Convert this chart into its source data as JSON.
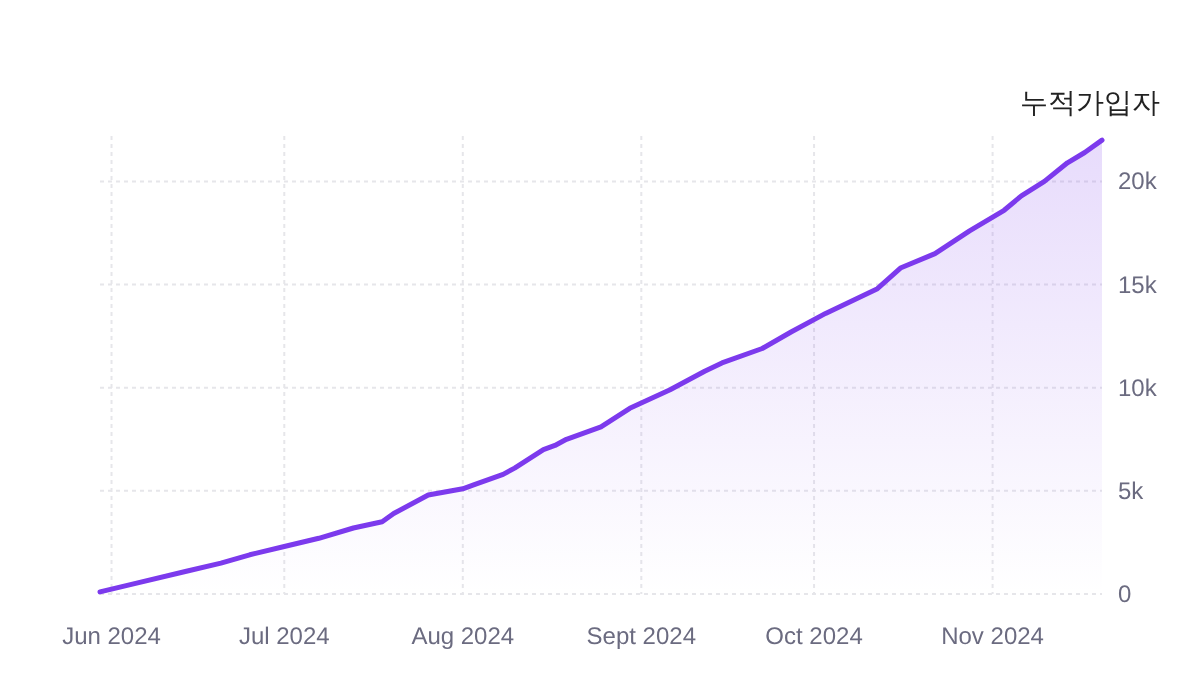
{
  "chart_data": {
    "type": "area",
    "ylabel": "누적가입자",
    "x": [
      "2024-05-30",
      "2024-06-05",
      "2024-06-14",
      "2024-06-20",
      "2024-06-25",
      "2024-07-01",
      "2024-07-07",
      "2024-07-13",
      "2024-07-18",
      "2024-07-20",
      "2024-07-26",
      "2024-08-01",
      "2024-08-03",
      "2024-08-08",
      "2024-08-10",
      "2024-08-15",
      "2024-08-17",
      "2024-08-19",
      "2024-08-25",
      "2024-08-30",
      "2024-09-06",
      "2024-09-12",
      "2024-09-15",
      "2024-09-22",
      "2024-09-27",
      "2024-10-03",
      "2024-10-12",
      "2024-10-16",
      "2024-10-22",
      "2024-10-28",
      "2024-11-03",
      "2024-11-06",
      "2024-11-10",
      "2024-11-14",
      "2024-11-17",
      "2024-11-20"
    ],
    "series": [
      {
        "color": "#7c3aed",
        "values": [
          100,
          500,
          1100,
          1500,
          1900,
          2300,
          2700,
          3200,
          3500,
          3900,
          4800,
          5100,
          5300,
          5800,
          6100,
          7000,
          7200,
          7500,
          8100,
          9000,
          9900,
          10800,
          11200,
          11900,
          12700,
          13600,
          14800,
          15800,
          16500,
          17600,
          18600,
          19300,
          20000,
          20900,
          21400,
          22000
        ]
      }
    ],
    "xlim": [
      "2024-05-30",
      "2024-11-20"
    ],
    "xticks": [
      {
        "value": "2024-06-01",
        "label": "Jun 2024"
      },
      {
        "value": "2024-07-01",
        "label": "Jul 2024"
      },
      {
        "value": "2024-08-01",
        "label": "Aug 2024"
      },
      {
        "value": "2024-09-01",
        "label": "Sept 2024"
      },
      {
        "value": "2024-10-01",
        "label": "Oct 2024"
      },
      {
        "value": "2024-11-01",
        "label": "Nov 2024"
      }
    ],
    "ylim": [
      0,
      22200
    ],
    "yticks": [
      0,
      {
        "value": 5000,
        "label": "5k"
      },
      {
        "value": 10000,
        "label": "10k"
      },
      {
        "value": 15000,
        "label": "15k"
      },
      {
        "value": 20000,
        "label": "20k"
      }
    ],
    "grid": true
  }
}
